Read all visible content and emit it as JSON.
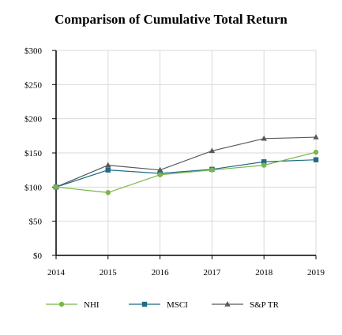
{
  "chart_data": {
    "type": "line",
    "title": "Comparison of Cumulative Total Return",
    "xlabel": "",
    "ylabel": "",
    "x": [
      "2014",
      "2015",
      "2016",
      "2017",
      "2018",
      "2019"
    ],
    "ylim": [
      0,
      300
    ],
    "yticks": [
      0,
      50,
      100,
      150,
      200,
      250,
      300
    ],
    "ytick_labels": [
      "$0",
      "$50",
      "$100",
      "$150",
      "$200",
      "$250",
      "$300"
    ],
    "grid": "horizontal and vertical",
    "legend_position": "bottom",
    "series": [
      {
        "name": "NHI",
        "values": [
          100,
          92,
          118,
          125,
          132,
          151
        ],
        "color": "#7ab648",
        "marker": "circle"
      },
      {
        "name": "MSCI",
        "values": [
          100,
          125,
          120,
          126,
          137,
          140
        ],
        "color": "#1f6b85",
        "marker": "square"
      },
      {
        "name": "S&P TR",
        "values": [
          100,
          132,
          125,
          153,
          171,
          173
        ],
        "color": "#595959",
        "marker": "triangle"
      }
    ]
  }
}
